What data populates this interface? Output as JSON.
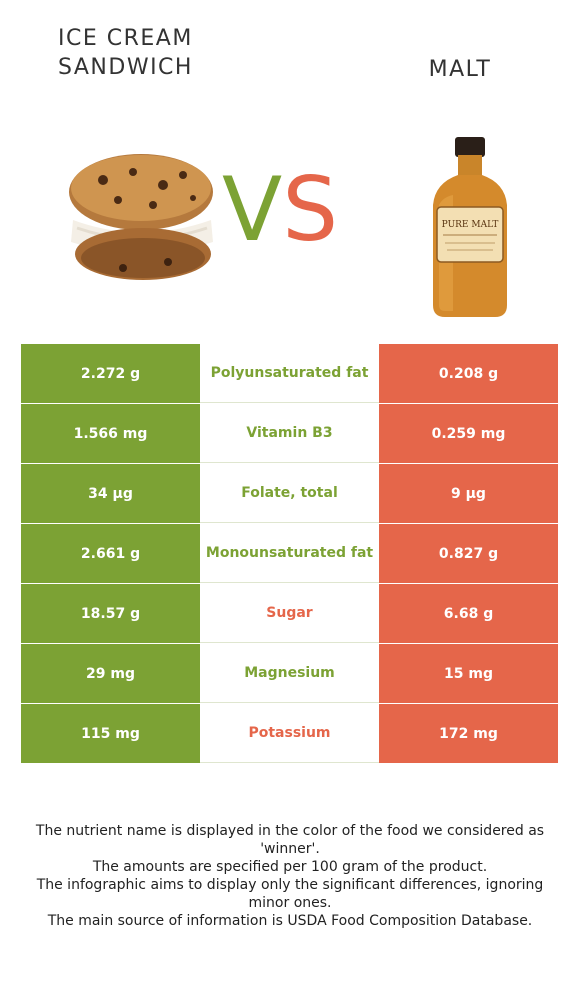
{
  "titles": {
    "left": "ICE CREAM SANDWICH",
    "right": "MALT"
  },
  "vs": {
    "v": "V",
    "s": "S"
  },
  "colors": {
    "left": "#7ca234",
    "right": "#e5664a"
  },
  "rows": [
    {
      "left": "2.272 g",
      "nutrient": "Polyunsaturated fat",
      "right": "0.208 g",
      "winner": "left"
    },
    {
      "left": "1.566 mg",
      "nutrient": "Vitamin B3",
      "right": "0.259 mg",
      "winner": "left"
    },
    {
      "left": "34 µg",
      "nutrient": "Folate, total",
      "right": "9 µg",
      "winner": "left"
    },
    {
      "left": "2.661 g",
      "nutrient": "Monounsaturated fat",
      "right": "0.827 g",
      "winner": "left"
    },
    {
      "left": "18.57 g",
      "nutrient": "Sugar",
      "right": "6.68 g",
      "winner": "right"
    },
    {
      "left": "29 mg",
      "nutrient": "Magnesium",
      "right": "15 mg",
      "winner": "left"
    },
    {
      "left": "115 mg",
      "nutrient": "Potassium",
      "right": "172 mg",
      "winner": "right"
    }
  ],
  "bottle_label": {
    "line1": "PURE MALT"
  },
  "notes": [
    "The nutrient name is displayed in the color of the food we considered as 'winner'.",
    "The amounts are specified per 100 gram of the product.",
    "The infographic aims to display only the significant differences, ignoring minor ones.",
    "The main source of information is USDA Food Composition Database."
  ]
}
